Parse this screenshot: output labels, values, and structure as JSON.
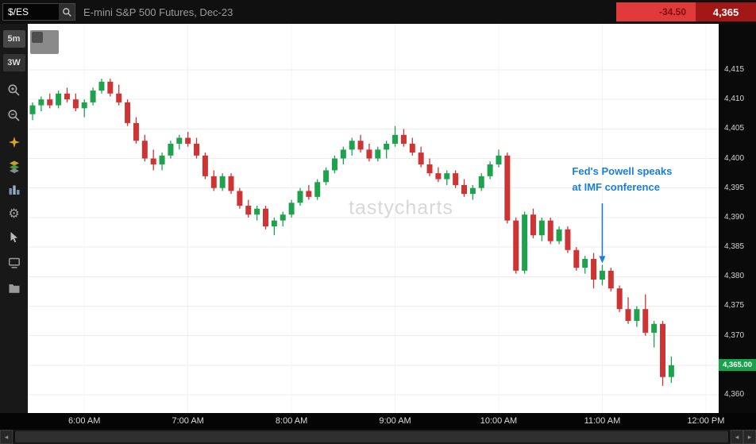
{
  "topbar": {
    "symbol": "$/ES",
    "title": "E-mini S&P 500 Futures, Dec-23",
    "change": "-34.50",
    "last_price": "4,365",
    "colors": {
      "change_bg": "#e03a3a",
      "change_text": "#7e0f0f",
      "price_bg": "#a31717",
      "price_text": "#ffffff"
    }
  },
  "sidebar": {
    "timeframe_label": "5m",
    "range_label": "3W"
  },
  "scrollbar": {
    "left_arrow": "◂",
    "right_arrow": "▸"
  },
  "chart_data": {
    "type": "candlestick",
    "title": "E-mini S&P 500 Futures, Dec-23",
    "symbol": "/ES",
    "interval": "5m",
    "watermark": "tastycharts",
    "ylim": [
      4358,
      4418
    ],
    "grid": "horizontal",
    "up_color": "#1fa24d",
    "down_color": "#cf3434",
    "price_ticks": [
      {
        "v": 4415,
        "label": "4,415"
      },
      {
        "v": 4410,
        "label": "4,410"
      },
      {
        "v": 4405,
        "label": "4,405"
      },
      {
        "v": 4400,
        "label": "4,400"
      },
      {
        "v": 4395,
        "label": "4,395"
      },
      {
        "v": 4390,
        "label": "4,390"
      },
      {
        "v": 4385,
        "label": "4,385"
      },
      {
        "v": 4380,
        "label": "4,380"
      },
      {
        "v": 4375,
        "label": "4,375"
      },
      {
        "v": 4370,
        "label": "4,370"
      },
      {
        "v": 4365,
        "label": "4,365"
      },
      {
        "v": 4360,
        "label": "4,360"
      }
    ],
    "x_labels": [
      "6:00 AM",
      "7:00 AM",
      "8:00 AM",
      "9:00 AM",
      "10:00 AM",
      "11:00 AM",
      "12:00 PM"
    ],
    "x_tick_indices": [
      6,
      18,
      30,
      42,
      54,
      66,
      78
    ],
    "last_price": {
      "value": 4365.0,
      "label": "4,365.00",
      "color": "#17a24b"
    },
    "change": -34.5,
    "annotation": {
      "text_line1": "Fed's Powell speaks",
      "text_line2": "at IMF conference",
      "color": "#1a7fd6",
      "arrow_time": "11:00",
      "arrow_index": 66,
      "arrow_points_to_price": 4382
    },
    "candle_columns": [
      "time",
      "open",
      "high",
      "low",
      "close"
    ],
    "candles": [
      [
        "5:30",
        4407.5,
        4409.5,
        4406.5,
        4409
      ],
      [
        "5:35",
        4409,
        4410.5,
        4408,
        4410
      ],
      [
        "5:40",
        4410,
        4411,
        4408.5,
        4409
      ],
      [
        "5:45",
        4409,
        4411.5,
        4408.5,
        4411
      ],
      [
        "5:50",
        4411,
        4412,
        4409.5,
        4410
      ],
      [
        "5:55",
        4410,
        4411,
        4408,
        4408.5
      ],
      [
        "6:00",
        4408.5,
        4410,
        4407,
        4409.5
      ],
      [
        "6:05",
        4409.5,
        4412,
        4409,
        4411.5
      ],
      [
        "6:10",
        4411.5,
        4413.5,
        4411,
        4413
      ],
      [
        "6:15",
        4413,
        4413.5,
        4410.5,
        4411
      ],
      [
        "6:20",
        4411,
        4412.5,
        4409,
        4409.5
      ],
      [
        "6:25",
        4409.5,
        4410,
        4405.5,
        4406
      ],
      [
        "6:30",
        4406,
        4407,
        4402.5,
        4403
      ],
      [
        "6:35",
        4403,
        4404,
        4399.5,
        4400
      ],
      [
        "6:40",
        4400,
        4401.5,
        4398,
        4399
      ],
      [
        "6:45",
        4399,
        4401,
        4398,
        4400.5
      ],
      [
        "6:50",
        4400.5,
        4403,
        4400,
        4402.5
      ],
      [
        "6:55",
        4402.5,
        4404,
        4401.5,
        4403.5
      ],
      [
        "7:00",
        4403.5,
        4404.5,
        4402,
        4402.5
      ],
      [
        "7:05",
        4402.5,
        4403.5,
        4400,
        4400.5
      ],
      [
        "7:10",
        4400.5,
        4401,
        4396.5,
        4397
      ],
      [
        "7:15",
        4397,
        4398,
        4394.5,
        4395
      ],
      [
        "7:20",
        4395,
        4397.5,
        4394.5,
        4397
      ],
      [
        "7:25",
        4397,
        4397.5,
        4394,
        4394.5
      ],
      [
        "7:30",
        4394.5,
        4395,
        4391.5,
        4392
      ],
      [
        "7:35",
        4392,
        4393,
        4390,
        4390.5
      ],
      [
        "7:40",
        4390.5,
        4392,
        4389.5,
        4391.5
      ],
      [
        "7:45",
        4391.5,
        4392,
        4388,
        4388.5
      ],
      [
        "7:50",
        4388.5,
        4390,
        4387,
        4389.5
      ],
      [
        "7:55",
        4389.5,
        4391,
        4388.5,
        4390.5
      ],
      [
        "8:00",
        4390.5,
        4393,
        4390,
        4392.5
      ],
      [
        "8:05",
        4392.5,
        4395,
        4392,
        4394.5
      ],
      [
        "8:10",
        4394.5,
        4395.5,
        4393,
        4393.5
      ],
      [
        "8:15",
        4393.5,
        4396.5,
        4393,
        4396
      ],
      [
        "8:20",
        4396,
        4398.5,
        4395.5,
        4398
      ],
      [
        "8:25",
        4398,
        4400.5,
        4397.5,
        4400
      ],
      [
        "8:30",
        4400,
        4402,
        4399,
        4401.5
      ],
      [
        "8:35",
        4401.5,
        4403.5,
        4400.5,
        4403
      ],
      [
        "8:40",
        4403,
        4404,
        4401,
        4401.5
      ],
      [
        "8:45",
        4401.5,
        4402.5,
        4399.5,
        4400
      ],
      [
        "8:50",
        4400,
        4402,
        4399.5,
        4401.5
      ],
      [
        "8:55",
        4401.5,
        4403,
        4400,
        4402.5
      ],
      [
        "9:00",
        4402.5,
        4405.5,
        4402,
        4404
      ],
      [
        "9:05",
        4404,
        4405,
        4402,
        4402.5
      ],
      [
        "9:10",
        4402.5,
        4403.5,
        4400.5,
        4401
      ],
      [
        "9:15",
        4401,
        4402,
        4398.5,
        4399
      ],
      [
        "9:20",
        4399,
        4400,
        4397,
        4397.5
      ],
      [
        "9:25",
        4397.5,
        4398.5,
        4396,
        4396.5
      ],
      [
        "9:30",
        4396.5,
        4398,
        4395.5,
        4397.5
      ],
      [
        "9:35",
        4397.5,
        4398,
        4395,
        4395.5
      ],
      [
        "9:40",
        4395.5,
        4396.5,
        4393.5,
        4394
      ],
      [
        "9:45",
        4394,
        4395.5,
        4393,
        4395
      ],
      [
        "9:50",
        4395,
        4397.5,
        4394.5,
        4397
      ],
      [
        "9:55",
        4397,
        4399.5,
        4396.5,
        4399
      ],
      [
        "10:00",
        4399,
        4401.5,
        4398.5,
        4400.5
      ],
      [
        "10:05",
        4400.5,
        4401,
        4389,
        4389.5
      ],
      [
        "10:10",
        4389.5,
        4390,
        4380.5,
        4381
      ],
      [
        "10:15",
        4381,
        4391,
        4380.5,
        4390.5
      ],
      [
        "10:20",
        4390.5,
        4391.5,
        4386.5,
        4387
      ],
      [
        "10:25",
        4387,
        4390,
        4386,
        4389.5
      ],
      [
        "10:30",
        4389.5,
        4390,
        4385.5,
        4386
      ],
      [
        "10:35",
        4386,
        4388.5,
        4385.5,
        4388
      ],
      [
        "10:40",
        4388,
        4388.5,
        4384,
        4384.5
      ],
      [
        "10:45",
        4384.5,
        4385,
        4381,
        4381.5
      ],
      [
        "10:50",
        4381.5,
        4383.5,
        4380.5,
        4383
      ],
      [
        "10:55",
        4383,
        4384,
        4378,
        4379.5
      ],
      [
        "11:00",
        4379.5,
        4382,
        4378.5,
        4381
      ],
      [
        "11:05",
        4381,
        4381.5,
        4377.5,
        4378
      ],
      [
        "11:10",
        4378,
        4378.5,
        4374,
        4374.5
      ],
      [
        "11:15",
        4374.5,
        4376.5,
        4372,
        4372.5
      ],
      [
        "11:20",
        4372.5,
        4375,
        4371.5,
        4374.5
      ],
      [
        "11:25",
        4374.5,
        4377,
        4370,
        4370.5
      ],
      [
        "11:30",
        4370.5,
        4372.5,
        4368,
        4372
      ],
      [
        "11:35",
        4372,
        4372.5,
        4361.5,
        4363
      ],
      [
        "11:40",
        4363,
        4366.5,
        4362,
        4365
      ]
    ]
  }
}
